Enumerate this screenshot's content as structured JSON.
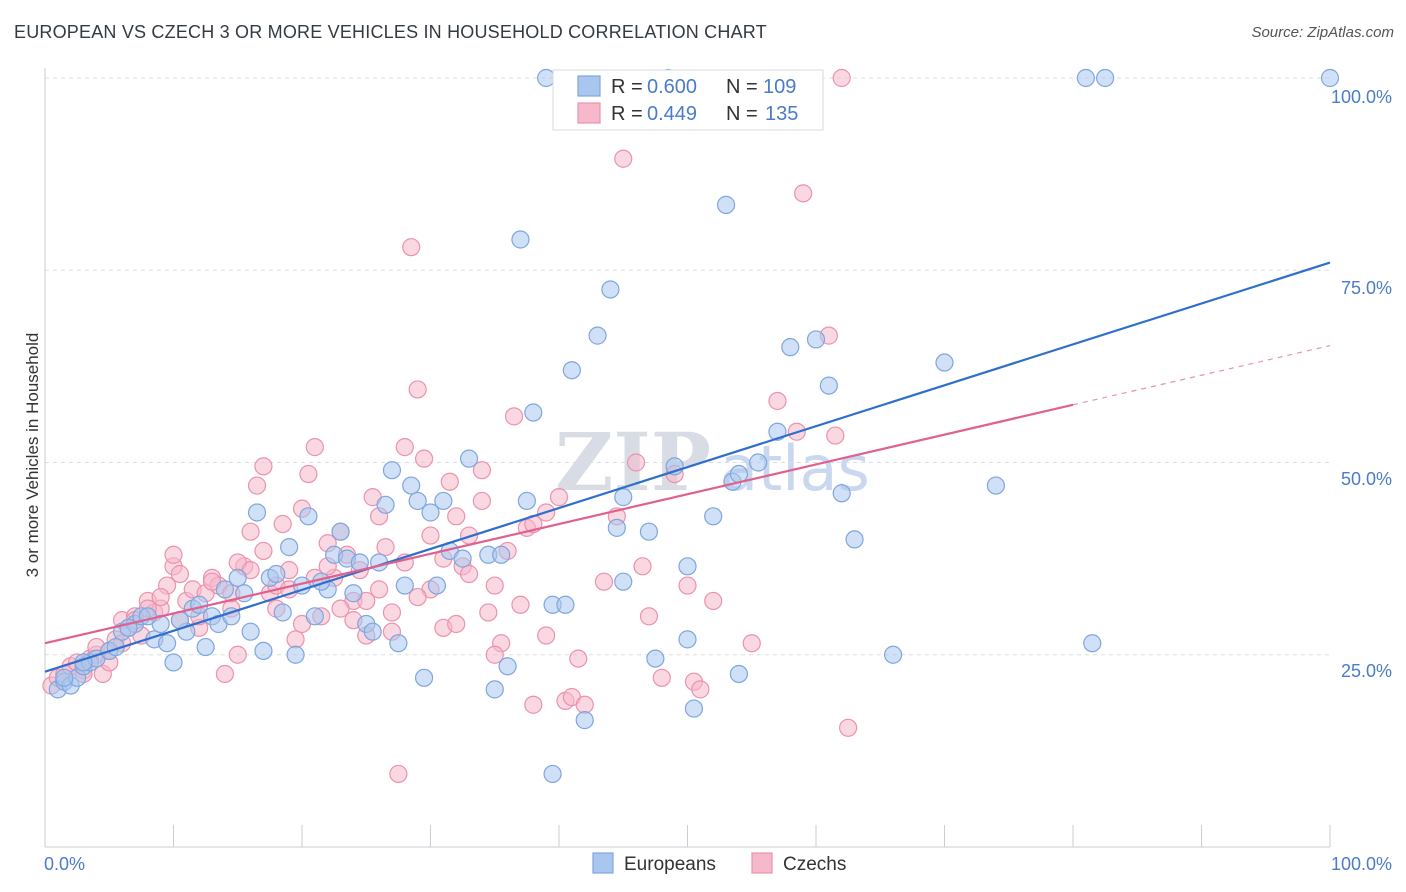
{
  "title": "EUROPEAN VS CZECH 3 OR MORE VEHICLES IN HOUSEHOLD CORRELATION CHART",
  "source": "Source: ZipAtlas.com",
  "watermark": {
    "zip": "ZIP",
    "atlas": "atlas"
  },
  "legend": {
    "rows": [
      {
        "r_label": "R =",
        "r_value": "0.600",
        "n_label": "N =",
        "n_value": "109"
      },
      {
        "r_label": "R =",
        "r_value": "0.449",
        "n_label": "N =",
        "n_value": "135"
      }
    ]
  },
  "bottom_legend": [
    "Europeans",
    "Czechs"
  ],
  "colors": {
    "blue_fill": "#a9c6ee",
    "blue_stroke": "#7fa6dd",
    "blue_line": "#2f6fcc",
    "pink_fill": "#f6b8cb",
    "pink_stroke": "#eb92ae",
    "pink_line": "#e0608f",
    "accent_text": "#4a7cc9",
    "grid": "#d9dde3"
  },
  "chart_data": {
    "type": "scatter",
    "xlabel": "",
    "ylabel": "3 or more Vehicles in Household",
    "x_tick_labels": [
      "0.0%",
      "100.0%"
    ],
    "y_tick_labels": [
      "25.0%",
      "50.0%",
      "75.0%",
      "100.0%"
    ],
    "xlim": [
      0,
      100
    ],
    "ylim": [
      0,
      100
    ],
    "grid": true,
    "series": [
      {
        "name": "Europeans",
        "r": 0.6,
        "n": 109,
        "trend": {
          "x0": 0,
          "y0": 22.8,
          "x1": 100,
          "y1": 76.0
        },
        "points": [
          [
            1.0,
            20.5
          ],
          [
            1.5,
            21.5
          ],
          [
            2.0,
            21.0
          ],
          [
            2.5,
            22.0
          ],
          [
            3.0,
            23.5
          ],
          [
            3.5,
            24.0
          ],
          [
            4.0,
            24.5
          ],
          [
            5.0,
            25.5
          ],
          [
            5.5,
            26.0
          ],
          [
            6.0,
            28.0
          ],
          [
            7.0,
            29.0
          ],
          [
            7.5,
            30.0
          ],
          [
            8.5,
            27.0
          ],
          [
            9.0,
            29.0
          ],
          [
            9.5,
            26.5
          ],
          [
            10.0,
            24.0
          ],
          [
            11.0,
            28.0
          ],
          [
            11.5,
            31.0
          ],
          [
            12.0,
            31.5
          ],
          [
            12.5,
            26.0
          ],
          [
            13.0,
            30.0
          ],
          [
            13.5,
            29.0
          ],
          [
            14.0,
            33.5
          ],
          [
            14.5,
            30.0
          ],
          [
            15.0,
            35.0
          ],
          [
            15.5,
            33.0
          ],
          [
            16.0,
            28.0
          ],
          [
            16.5,
            43.5
          ],
          [
            17.0,
            25.5
          ],
          [
            17.5,
            35.0
          ],
          [
            18.0,
            35.5
          ],
          [
            18.5,
            30.5
          ],
          [
            19.0,
            39.0
          ],
          [
            20.0,
            34.0
          ],
          [
            20.5,
            43.0
          ],
          [
            21.0,
            30.0
          ],
          [
            22.0,
            33.5
          ],
          [
            22.5,
            38.0
          ],
          [
            23.0,
            41.0
          ],
          [
            23.5,
            37.5
          ],
          [
            24.0,
            33.0
          ],
          [
            24.5,
            37.0
          ],
          [
            25.0,
            29.0
          ],
          [
            25.5,
            28.0
          ],
          [
            26.0,
            37.0
          ],
          [
            26.5,
            44.5
          ],
          [
            27.0,
            49.0
          ],
          [
            27.5,
            26.5
          ],
          [
            28.0,
            34.0
          ],
          [
            28.5,
            47.0
          ],
          [
            29.0,
            45.0
          ],
          [
            29.5,
            22.0
          ],
          [
            30.0,
            43.5
          ],
          [
            30.5,
            34.0
          ],
          [
            31.0,
            45.0
          ],
          [
            31.5,
            38.5
          ],
          [
            32.5,
            37.5
          ],
          [
            33.0,
            50.5
          ],
          [
            34.5,
            38.0
          ],
          [
            35.0,
            20.5
          ],
          [
            35.5,
            38.0
          ],
          [
            36.0,
            23.5
          ],
          [
            37.0,
            79.0
          ],
          [
            37.5,
            45.0
          ],
          [
            38.0,
            56.5
          ],
          [
            39.0,
            100.0
          ],
          [
            39.5,
            9.5
          ],
          [
            39.5,
            31.5
          ],
          [
            40.5,
            31.5
          ],
          [
            41.0,
            62.0
          ],
          [
            42.0,
            16.5
          ],
          [
            43.0,
            66.5
          ],
          [
            44.0,
            72.5
          ],
          [
            44.5,
            41.5
          ],
          [
            45.0,
            45.5
          ],
          [
            45.0,
            34.5
          ],
          [
            47.0,
            41.0
          ],
          [
            47.5,
            24.5
          ],
          [
            48.5,
            100.0
          ],
          [
            49.0,
            49.5
          ],
          [
            50.0,
            36.5
          ],
          [
            50.0,
            27.0
          ],
          [
            50.5,
            18.0
          ],
          [
            52.0,
            43.0
          ],
          [
            53.0,
            83.5
          ],
          [
            53.5,
            47.5
          ],
          [
            54.0,
            48.5
          ],
          [
            54.0,
            22.5
          ],
          [
            55.5,
            50.0
          ],
          [
            57.0,
            54.0
          ],
          [
            58.0,
            65.0
          ],
          [
            60.0,
            66.0
          ],
          [
            61.0,
            60.0
          ],
          [
            62.0,
            46.0
          ],
          [
            63.0,
            40.0
          ],
          [
            66.0,
            25.0
          ],
          [
            70.0,
            63.0
          ],
          [
            74.0,
            47.0
          ],
          [
            81.0,
            100.0
          ],
          [
            81.5,
            26.5
          ],
          [
            82.5,
            100.0
          ],
          [
            100.0,
            100.0
          ],
          [
            1.5,
            22.0
          ],
          [
            3.0,
            24.0
          ],
          [
            6.5,
            28.5
          ],
          [
            8.0,
            30.0
          ],
          [
            10.5,
            29.5
          ],
          [
            19.5,
            25.0
          ],
          [
            21.5,
            34.5
          ]
        ]
      },
      {
        "name": "Czechs",
        "r": 0.449,
        "n": 135,
        "trend": {
          "x0": 0,
          "y0": 26.5,
          "x1": 80,
          "y1": 57.5
        },
        "trend_extension": {
          "x0": 80,
          "y0": 57.5,
          "x1": 100,
          "y1": 65.2
        },
        "points": [
          [
            0.5,
            21.0
          ],
          [
            1.0,
            22.0
          ],
          [
            1.5,
            22.5
          ],
          [
            2.0,
            23.5
          ],
          [
            2.5,
            24.0
          ],
          [
            3.0,
            23.0
          ],
          [
            3.5,
            24.5
          ],
          [
            4.0,
            25.0
          ],
          [
            4.5,
            22.5
          ],
          [
            5.0,
            24.0
          ],
          [
            5.5,
            27.0
          ],
          [
            6.0,
            29.5
          ],
          [
            6.5,
            28.5
          ],
          [
            7.0,
            30.0
          ],
          [
            7.5,
            27.5
          ],
          [
            8.0,
            32.0
          ],
          [
            8.5,
            30.5
          ],
          [
            9.0,
            31.0
          ],
          [
            9.5,
            34.0
          ],
          [
            10.0,
            36.5
          ],
          [
            10.0,
            38.0
          ],
          [
            10.5,
            29.5
          ],
          [
            11.0,
            32.0
          ],
          [
            11.5,
            33.5
          ],
          [
            12.0,
            28.5
          ],
          [
            12.5,
            33.0
          ],
          [
            13.0,
            35.0
          ],
          [
            13.5,
            34.0
          ],
          [
            14.0,
            22.5
          ],
          [
            14.5,
            31.0
          ],
          [
            15.0,
            25.0
          ],
          [
            15.5,
            36.5
          ],
          [
            16.0,
            41.0
          ],
          [
            16.5,
            47.0
          ],
          [
            17.0,
            49.5
          ],
          [
            17.5,
            33.0
          ],
          [
            18.0,
            31.0
          ],
          [
            18.5,
            42.0
          ],
          [
            19.0,
            36.0
          ],
          [
            19.5,
            27.0
          ],
          [
            20.0,
            44.0
          ],
          [
            20.5,
            48.5
          ],
          [
            21.0,
            52.0
          ],
          [
            21.5,
            30.0
          ],
          [
            22.0,
            39.5
          ],
          [
            22.5,
            35.0
          ],
          [
            23.0,
            41.0
          ],
          [
            23.5,
            38.0
          ],
          [
            24.0,
            32.0
          ],
          [
            24.5,
            36.0
          ],
          [
            25.0,
            27.5
          ],
          [
            25.5,
            45.5
          ],
          [
            26.0,
            43.0
          ],
          [
            26.5,
            39.0
          ],
          [
            27.0,
            30.5
          ],
          [
            27.5,
            9.5
          ],
          [
            28.0,
            52.0
          ],
          [
            28.5,
            78.0
          ],
          [
            29.0,
            59.5
          ],
          [
            29.5,
            50.5
          ],
          [
            30.0,
            33.5
          ],
          [
            31.0,
            28.5
          ],
          [
            31.5,
            47.5
          ],
          [
            32.0,
            43.0
          ],
          [
            32.5,
            36.5
          ],
          [
            33.0,
            40.5
          ],
          [
            34.0,
            49.0
          ],
          [
            34.5,
            30.5
          ],
          [
            35.0,
            34.0
          ],
          [
            35.5,
            26.5
          ],
          [
            36.5,
            56.0
          ],
          [
            37.5,
            41.5
          ],
          [
            38.0,
            18.5
          ],
          [
            39.0,
            43.5
          ],
          [
            40.5,
            19.0
          ],
          [
            41.0,
            19.5
          ],
          [
            41.5,
            24.5
          ],
          [
            42.0,
            18.5
          ],
          [
            43.5,
            34.5
          ],
          [
            44.5,
            43.0
          ],
          [
            45.0,
            89.5
          ],
          [
            46.0,
            50.0
          ],
          [
            46.5,
            36.5
          ],
          [
            47.0,
            30.0
          ],
          [
            48.0,
            22.0
          ],
          [
            49.0,
            48.5
          ],
          [
            50.0,
            34.0
          ],
          [
            50.5,
            21.5
          ],
          [
            51.0,
            20.5
          ],
          [
            52.0,
            32.0
          ],
          [
            55.0,
            26.5
          ],
          [
            57.0,
            58.0
          ],
          [
            58.5,
            54.0
          ],
          [
            59.0,
            85.0
          ],
          [
            61.0,
            66.5
          ],
          [
            61.5,
            53.5
          ],
          [
            62.0,
            100.0
          ],
          [
            62.5,
            15.5
          ],
          [
            3.0,
            22.5
          ],
          [
            4.0,
            26.0
          ],
          [
            5.0,
            25.5
          ],
          [
            6.0,
            26.5
          ],
          [
            7.0,
            29.5
          ],
          [
            8.0,
            31.0
          ],
          [
            9.0,
            32.5
          ],
          [
            10.5,
            35.5
          ],
          [
            12.0,
            30.0
          ],
          [
            13.0,
            34.5
          ],
          [
            14.5,
            33.0
          ],
          [
            15.0,
            37.0
          ],
          [
            16.0,
            36.0
          ],
          [
            17.0,
            38.5
          ],
          [
            18.0,
            34.0
          ],
          [
            19.0,
            33.5
          ],
          [
            20.0,
            29.0
          ],
          [
            21.0,
            35.0
          ],
          [
            22.0,
            36.5
          ],
          [
            23.0,
            31.0
          ],
          [
            24.0,
            29.5
          ],
          [
            25.0,
            32.0
          ],
          [
            26.0,
            33.5
          ],
          [
            27.0,
            28.0
          ],
          [
            28.0,
            37.0
          ],
          [
            29.0,
            32.5
          ],
          [
            30.0,
            40.5
          ],
          [
            31.0,
            37.5
          ],
          [
            32.0,
            29.0
          ],
          [
            33.0,
            35.5
          ],
          [
            34.0,
            45.0
          ],
          [
            35.0,
            25.0
          ],
          [
            36.0,
            38.5
          ],
          [
            37.0,
            31.5
          ],
          [
            38.0,
            42.0
          ],
          [
            39.0,
            27.5
          ],
          [
            40.0,
            45.5
          ]
        ]
      }
    ]
  }
}
